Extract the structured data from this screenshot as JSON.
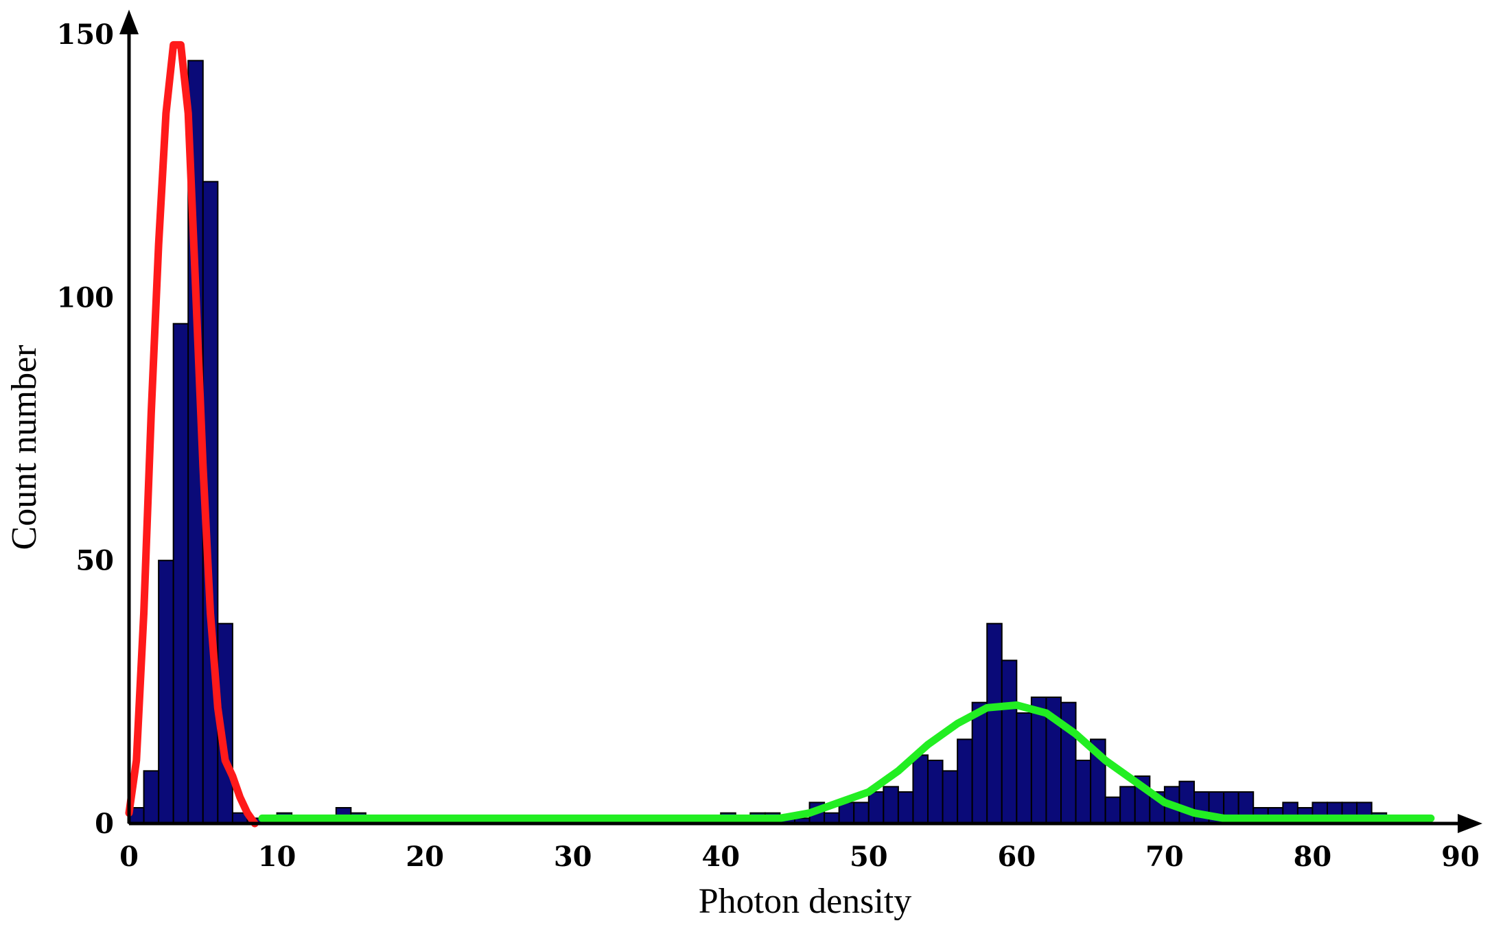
{
  "chart_data": {
    "type": "bar",
    "xlabel": "Photon density",
    "ylabel": "Count number",
    "xlim": [
      0,
      90
    ],
    "ylim": [
      0,
      150
    ],
    "xticks": [
      0,
      10,
      20,
      30,
      40,
      50,
      60,
      70,
      80,
      90
    ],
    "yticks": [
      0,
      50,
      100,
      150
    ],
    "grid": false,
    "bin_width": 1,
    "bar_color": "#0a0a78",
    "bin_starts": [
      0,
      1,
      2,
      3,
      4,
      5,
      6,
      7,
      8,
      9,
      10,
      11,
      12,
      13,
      14,
      15,
      16,
      17,
      18,
      19,
      20,
      21,
      22,
      23,
      24,
      25,
      26,
      27,
      28,
      29,
      30,
      31,
      32,
      33,
      34,
      35,
      36,
      37,
      38,
      39,
      40,
      41,
      42,
      43,
      44,
      45,
      46,
      47,
      48,
      49,
      50,
      51,
      52,
      53,
      54,
      55,
      56,
      57,
      58,
      59,
      60,
      61,
      62,
      63,
      64,
      65,
      66,
      67,
      68,
      69,
      70,
      71,
      72,
      73,
      74,
      75,
      76,
      77,
      78,
      79,
      80,
      81,
      82,
      83,
      84,
      85,
      86,
      87
    ],
    "values": [
      3,
      10,
      50,
      95,
      145,
      122,
      38,
      2,
      1,
      0,
      2,
      1,
      1,
      1,
      3,
      2,
      1,
      1,
      1,
      1,
      1,
      1,
      0,
      0,
      0,
      1,
      1,
      1,
      1,
      1,
      1,
      0,
      1,
      1,
      1,
      0,
      1,
      1,
      1,
      1,
      2,
      1,
      2,
      2,
      1,
      1,
      4,
      2,
      4,
      4,
      6,
      7,
      6,
      13,
      12,
      10,
      16,
      23,
      38,
      31,
      21,
      24,
      24,
      23,
      12,
      16,
      5,
      7,
      9,
      6,
      7,
      8,
      6,
      6,
      6,
      6,
      3,
      3,
      4,
      3,
      4,
      4,
      4,
      4,
      2,
      1,
      1,
      1
    ],
    "fit_curves": [
      {
        "color": "#ff1a1a",
        "x": [
          0,
          0.5,
          1,
          1.5,
          2,
          2.5,
          3,
          3.5,
          4,
          4.5,
          5,
          5.5,
          6,
          6.5,
          7,
          7.5,
          8,
          8.5
        ],
        "y": [
          2,
          12,
          40,
          78,
          110,
          135,
          148,
          148,
          135,
          102,
          68,
          40,
          22,
          12,
          9,
          5,
          2,
          0
        ]
      },
      {
        "color": "#22ee22",
        "x": [
          9,
          20,
          30,
          40,
          44,
          46,
          48,
          50,
          52,
          54,
          56,
          58,
          60,
          62,
          64,
          66,
          68,
          70,
          72,
          74,
          76,
          80,
          85,
          88
        ],
        "y": [
          1,
          1,
          1,
          1,
          1,
          2,
          4,
          6,
          10,
          15,
          19,
          22,
          22.5,
          21,
          17,
          12,
          8,
          4,
          2,
          1,
          1,
          1,
          1,
          1
        ]
      }
    ]
  }
}
